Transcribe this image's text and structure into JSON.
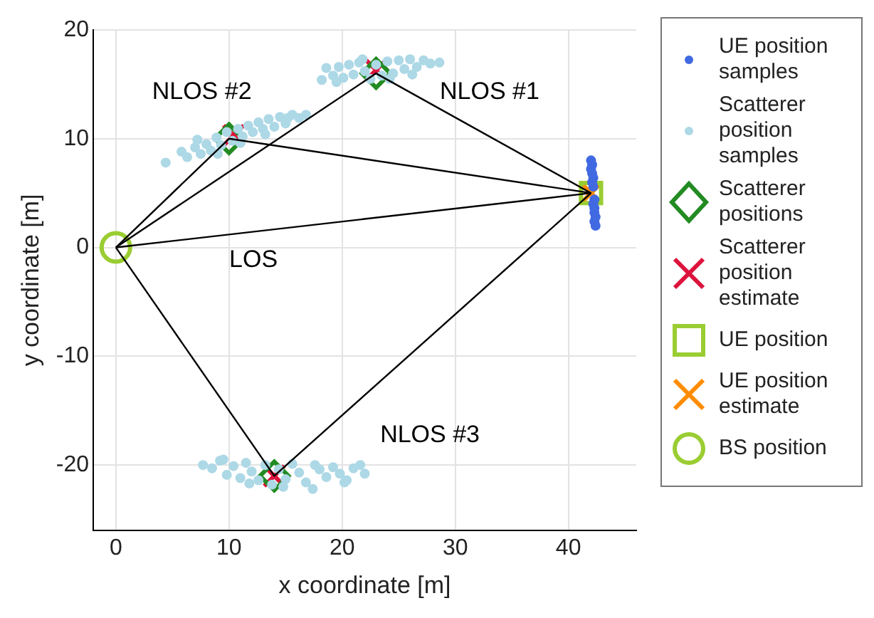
{
  "chart_data": {
    "type": "scatter",
    "xlabel": "x coordinate [m]",
    "ylabel": "y coordinate [m]",
    "xlim": [
      -2,
      46
    ],
    "xticks": [
      0,
      10,
      20,
      30,
      40
    ],
    "ylim": [
      -26,
      20
    ],
    "yticks": [
      -20,
      -10,
      0,
      10,
      20
    ],
    "grid": true,
    "legend": "right",
    "annotations": [
      "NLOS #1",
      "NLOS #2",
      "LOS",
      "NLOS #3"
    ],
    "series": [
      {
        "type": "line",
        "color": "#000000",
        "marker": "none",
        "x": [
          0,
          10,
          42
        ],
        "values": [
          0,
          10,
          5
        ]
      },
      {
        "type": "line",
        "color": "#000000",
        "marker": "none",
        "x": [
          0,
          23,
          42
        ],
        "values": [
          0,
          16,
          5
        ]
      },
      {
        "type": "line",
        "color": "#000000",
        "marker": "none",
        "x": [
          0,
          42
        ],
        "values": [
          0,
          5
        ]
      },
      {
        "type": "line",
        "color": "#000000",
        "marker": "none",
        "x": [
          0,
          14,
          42
        ],
        "values": [
          0,
          -21,
          5
        ]
      },
      {
        "name": "UE position samples",
        "color": "#4169e1",
        "marker": "circle",
        "x": [
          42.0,
          42.1,
          42.0,
          42.1,
          42.2,
          42.1,
          42.2,
          42.3,
          42.2,
          42.3,
          42.3,
          42.4,
          42.3,
          42.4
        ],
        "values": [
          8.0,
          7.6,
          7.2,
          6.8,
          6.4,
          6.0,
          5.6,
          4.4,
          4.0,
          3.6,
          3.2,
          2.8,
          2.4,
          2.0
        ]
      },
      {
        "name": "Scatterer position samples",
        "color": "#add8e6",
        "marker": "circle",
        "x": [
          4.4,
          5.8,
          6.3,
          7.0,
          7.5,
          8.0,
          8.4,
          8.9,
          9.3,
          9.8,
          10.3,
          10.8,
          11.2,
          11.7,
          12.1,
          12.6,
          13.0,
          13.5,
          14.0,
          14.5,
          15.0,
          15.6,
          16.2,
          16.8,
          7.2,
          9.0,
          11.0,
          13.2,
          15.2,
          18.2,
          18.6,
          19.2,
          19.7,
          20.1,
          20.6,
          21.0,
          21.5,
          22.0,
          22.5,
          23.0,
          23.5,
          24.0,
          24.5,
          25.0,
          25.5,
          26.0,
          26.6,
          27.2,
          27.8,
          28.6,
          19.5,
          21.8,
          24.2,
          26.2,
          7.7,
          8.5,
          9.2,
          9.8,
          10.4,
          11.0,
          11.5,
          12.0,
          12.6,
          13.2,
          13.8,
          14.4,
          15.0,
          15.6,
          16.2,
          16.8,
          17.4,
          18.0,
          18.6,
          19.2,
          19.8,
          20.4,
          21.0,
          21.6,
          22.0,
          9.5,
          11.8,
          14.8,
          17.6,
          20.2
        ],
        "values": [
          7.8,
          8.8,
          8.3,
          9.2,
          8.6,
          9.5,
          8.9,
          10.1,
          9.4,
          10.6,
          9.8,
          10.9,
          10.2,
          11.2,
          10.6,
          11.5,
          10.9,
          11.8,
          11.1,
          12.0,
          11.4,
          12.2,
          11.9,
          12.2,
          9.9,
          8.6,
          9.6,
          10.4,
          11.9,
          15.4,
          16.5,
          15.8,
          16.6,
          15.6,
          16.8,
          15.9,
          17.0,
          16.2,
          15.5,
          16.8,
          15.8,
          17.1,
          16.0,
          17.2,
          16.4,
          17.3,
          16.6,
          17.2,
          16.9,
          17.0,
          15.2,
          17.3,
          15.5,
          15.9,
          -20.0,
          -20.3,
          -19.6,
          -20.9,
          -20.1,
          -21.2,
          -19.8,
          -20.6,
          -21.4,
          -20.0,
          -21.8,
          -20.4,
          -21.3,
          -19.9,
          -20.7,
          -21.6,
          -22.2,
          -20.4,
          -21.1,
          -20.2,
          -20.8,
          -21.4,
          -20.3,
          -20.0,
          -20.8,
          -19.5,
          -21.7,
          -22.0,
          -20.0,
          -21.6
        ]
      },
      {
        "name": "Scatterer positions",
        "color": "#228b22",
        "marker": "diamond",
        "x": [
          10,
          23,
          14
        ],
        "values": [
          10,
          16,
          -21
        ]
      },
      {
        "name": "Scatterer position estimate",
        "color": "#dc143c",
        "marker": "cross",
        "x": [
          10.4,
          23,
          14
        ],
        "values": [
          10.3,
          16.3,
          -21
        ]
      },
      {
        "name": "UE position",
        "color": "#9acd32",
        "marker": "square",
        "x": [
          42
        ],
        "values": [
          5
        ]
      },
      {
        "name": "UE position estimate",
        "color": "#ff8c00",
        "marker": "cross",
        "x": [
          42
        ],
        "values": [
          5
        ]
      },
      {
        "name": "BS position",
        "color": "#9acd32",
        "marker": "circle",
        "x": [
          0
        ],
        "values": [
          0
        ]
      }
    ]
  }
}
